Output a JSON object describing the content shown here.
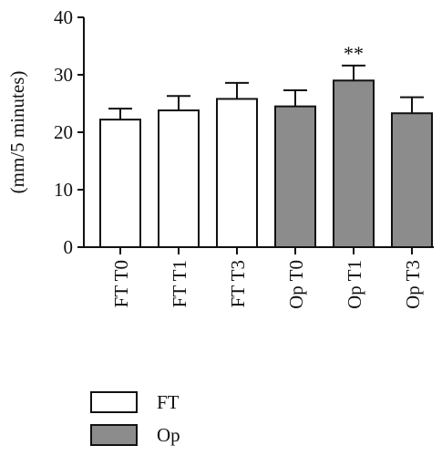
{
  "chart_data": {
    "type": "bar",
    "title": "",
    "xlabel": "",
    "ylabel": "(mm/5 minutes)",
    "ylim": [
      0,
      40
    ],
    "yticks": [
      0,
      10,
      20,
      30,
      40
    ],
    "grid": false,
    "legend_placement": "bottom-left",
    "categories": [
      "FT T0",
      "FT T1",
      "FT T3",
      "Op T0",
      "Op T1",
      "Op T3"
    ],
    "values": [
      22.2,
      23.8,
      25.8,
      24.5,
      29.0,
      23.3
    ],
    "errors": [
      1.9,
      2.5,
      2.8,
      2.8,
      2.6,
      2.8
    ],
    "groups": [
      "FT",
      "FT",
      "FT",
      "Op",
      "Op",
      "Op"
    ],
    "annotations": [
      {
        "category": "Op T1",
        "text": "**"
      }
    ],
    "legend": [
      {
        "label": "FT",
        "color": "#ffffff"
      },
      {
        "label": "Op",
        "color": "#8c8c8c"
      }
    ],
    "colors": {
      "FT": "#ffffff",
      "Op": "#8c8c8c",
      "stroke": "#111111"
    }
  }
}
